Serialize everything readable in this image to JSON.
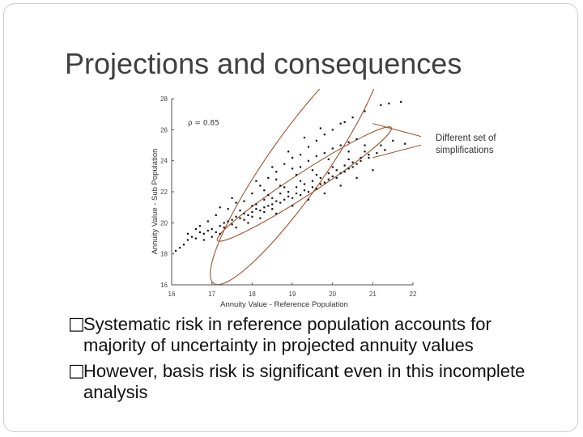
{
  "slide": {
    "title": "Projections and consequences",
    "bullets": [
      "Systematic risk in reference population accounts for majority of uncertainty in projected annuity values",
      "However, basis risk is significant even in this incomplete analysis"
    ],
    "bullet_glyph": "",
    "callout_text": "Different set of simplifications"
  },
  "chart_data": {
    "type": "scatter",
    "xlabel": "Annuity Value - Reference Population",
    "ylabel": "Annuity Value - Sub Population",
    "annotation": "ρ = 0.85",
    "xlim": [
      16,
      22
    ],
    "ylim": [
      16,
      28
    ],
    "xticks": [
      "16",
      "17",
      "18",
      "19",
      "20",
      "21",
      "22"
    ],
    "yticks": [
      "16",
      "18",
      "20",
      "22",
      "24",
      "26",
      "28"
    ],
    "colors": {
      "points": "#111111",
      "ellipse": "#a0522d",
      "axis": "#555555"
    },
    "series": [
      {
        "points": [
          [
            16.1,
            18.2
          ],
          [
            16.2,
            18.4
          ],
          [
            16.3,
            18.6
          ],
          [
            16.4,
            18.9
          ],
          [
            16.5,
            19.1
          ],
          [
            16.6,
            19.0
          ],
          [
            16.7,
            19.4
          ],
          [
            16.8,
            19.3
          ],
          [
            16.9,
            19.5
          ],
          [
            17.0,
            19.6
          ],
          [
            17.1,
            19.4
          ],
          [
            17.2,
            19.8
          ],
          [
            17.3,
            20.0
          ],
          [
            17.3,
            19.7
          ],
          [
            17.4,
            20.1
          ],
          [
            17.5,
            20.2
          ],
          [
            17.5,
            19.9
          ],
          [
            17.6,
            20.4
          ],
          [
            17.7,
            20.3
          ],
          [
            17.8,
            20.6
          ],
          [
            17.8,
            20.2
          ],
          [
            17.9,
            20.5
          ],
          [
            18.0,
            20.7
          ],
          [
            18.0,
            20.4
          ],
          [
            18.1,
            20.9
          ],
          [
            18.2,
            20.8
          ],
          [
            18.3,
            21.0
          ],
          [
            18.3,
            20.7
          ],
          [
            18.4,
            21.1
          ],
          [
            18.5,
            21.2
          ],
          [
            18.5,
            20.9
          ],
          [
            18.6,
            21.4
          ],
          [
            18.7,
            21.3
          ],
          [
            18.8,
            21.5
          ],
          [
            18.9,
            21.7
          ],
          [
            19.0,
            21.6
          ],
          [
            19.1,
            21.9
          ],
          [
            19.2,
            21.8
          ],
          [
            19.3,
            22.1
          ],
          [
            19.4,
            22.0
          ],
          [
            19.5,
            22.3
          ],
          [
            19.6,
            22.2
          ],
          [
            19.7,
            22.5
          ],
          [
            19.8,
            22.6
          ],
          [
            19.9,
            22.8
          ],
          [
            20.0,
            23.0
          ],
          [
            20.1,
            22.9
          ],
          [
            20.2,
            23.2
          ],
          [
            20.3,
            23.3
          ],
          [
            20.4,
            23.5
          ],
          [
            20.5,
            23.6
          ],
          [
            20.6,
            23.8
          ],
          [
            20.7,
            24.0
          ],
          [
            20.9,
            24.2
          ],
          [
            21.1,
            24.5
          ],
          [
            21.3,
            24.7
          ],
          [
            17.8,
            21.4
          ],
          [
            18.0,
            21.9
          ],
          [
            18.2,
            22.4
          ],
          [
            18.4,
            22.9
          ],
          [
            18.6,
            23.3
          ],
          [
            18.8,
            23.8
          ],
          [
            19.0,
            24.2
          ],
          [
            19.2,
            24.4
          ],
          [
            19.4,
            24.9
          ],
          [
            19.6,
            25.3
          ],
          [
            19.8,
            25.7
          ],
          [
            20.0,
            26.0
          ],
          [
            20.2,
            26.4
          ],
          [
            20.5,
            26.8
          ],
          [
            20.8,
            27.2
          ],
          [
            21.2,
            27.6
          ],
          [
            21.4,
            27.7
          ],
          [
            21.7,
            27.8
          ],
          [
            17.2,
            21.0
          ],
          [
            17.5,
            21.6
          ],
          [
            18.1,
            22.7
          ],
          [
            18.5,
            23.6
          ],
          [
            18.9,
            24.6
          ],
          [
            19.3,
            25.5
          ],
          [
            19.7,
            26.1
          ],
          [
            20.3,
            26.5
          ],
          [
            17.6,
            21.3
          ],
          [
            18.3,
            22.1
          ],
          [
            18.7,
            22.4
          ],
          [
            19.1,
            23.1
          ],
          [
            19.5,
            23.4
          ],
          [
            19.9,
            24.1
          ],
          [
            20.4,
            24.6
          ],
          [
            20.8,
            25.0
          ],
          [
            21.5,
            25.3
          ],
          [
            21.8,
            25.1
          ],
          [
            16.9,
            20.1
          ],
          [
            17.1,
            20.5
          ],
          [
            17.4,
            20.9
          ],
          [
            16.6,
            19.6
          ],
          [
            16.8,
            18.9
          ],
          [
            17.0,
            19.1
          ],
          [
            17.2,
            19.3
          ],
          [
            17.6,
            19.7
          ],
          [
            17.9,
            20.0
          ],
          [
            18.2,
            20.3
          ],
          [
            18.6,
            20.6
          ],
          [
            19.0,
            21.1
          ],
          [
            19.4,
            21.5
          ],
          [
            19.8,
            21.9
          ],
          [
            20.2,
            22.4
          ],
          [
            20.6,
            22.9
          ],
          [
            21.0,
            23.4
          ],
          [
            18.4,
            21.8
          ],
          [
            18.8,
            22.3
          ],
          [
            19.2,
            22.7
          ],
          [
            19.6,
            23.1
          ],
          [
            20.0,
            23.6
          ],
          [
            20.4,
            24.1
          ],
          [
            20.8,
            24.6
          ],
          [
            21.2,
            25.0
          ],
          [
            18.1,
            21.2
          ],
          [
            18.5,
            21.6
          ],
          [
            18.9,
            22.0
          ],
          [
            19.3,
            22.5
          ],
          [
            19.7,
            22.9
          ],
          [
            20.1,
            23.4
          ],
          [
            20.5,
            23.9
          ],
          [
            20.9,
            24.4
          ],
          [
            16.4,
            19.3
          ],
          [
            16.7,
            19.8
          ],
          [
            17.7,
            20.8
          ],
          [
            18.0,
            21.1
          ],
          [
            18.3,
            21.5
          ],
          [
            18.7,
            21.9
          ],
          [
            19.1,
            22.3
          ],
          [
            19.5,
            22.7
          ],
          [
            19.9,
            23.2
          ],
          [
            20.3,
            23.7
          ],
          [
            20.7,
            24.2
          ],
          [
            19.0,
            23.5
          ],
          [
            19.4,
            24.0
          ],
          [
            19.8,
            24.5
          ],
          [
            20.2,
            25.0
          ],
          [
            20.6,
            25.4
          ],
          [
            18.6,
            22.8
          ],
          [
            19.2,
            23.6
          ],
          [
            19.6,
            24.3
          ],
          [
            20.0,
            24.8
          ],
          [
            20.4,
            25.2
          ]
        ]
      }
    ]
  }
}
